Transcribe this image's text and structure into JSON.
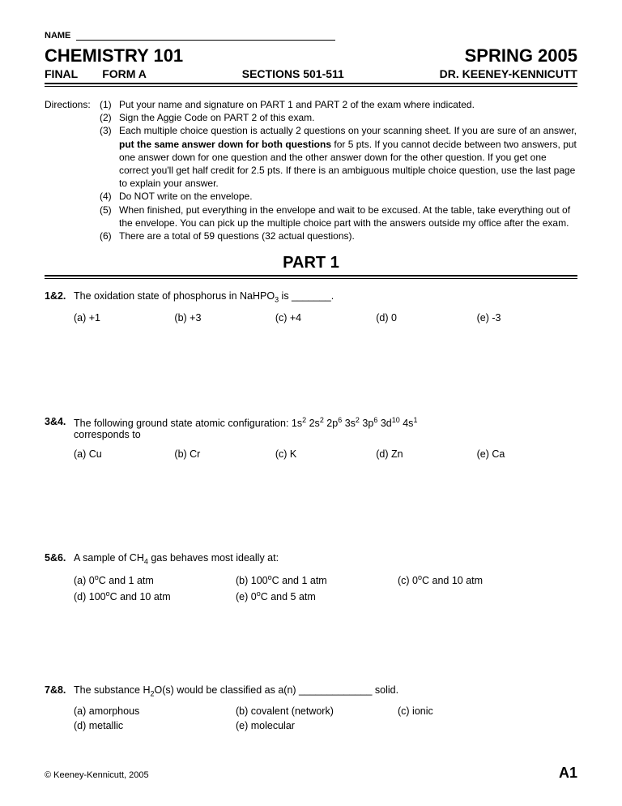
{
  "name_label": "NAME",
  "header": {
    "course": "CHEMISTRY 101",
    "term": "SPRING 2005",
    "exam": "FINAL",
    "form": "FORM A",
    "sections": "SECTIONS 501-511",
    "instructor": "DR. KEENEY-KENNICUTT"
  },
  "directions_label": "Directions:",
  "directions": [
    {
      "n": "(1)",
      "text": "Put your name and signature on PART 1 and PART 2 of the exam where indicated."
    },
    {
      "n": "(2)",
      "text": "Sign the Aggie Code on PART 2 of this exam."
    },
    {
      "n": "(3)",
      "pre": "Each multiple choice question is actually 2 questions on your scanning sheet.  If you are sure of an answer, ",
      "bold": "put the same answer down for both questions",
      "post": " for 5 pts.  If you cannot decide between two answers, put one answer down for one question and the other answer down for the other question.  If you get one correct you'll get half credit for 2.5 pts.  If there is an ambiguous multiple choice question, use the last page to explain your answer."
    },
    {
      "n": "(4)",
      "text": "Do NOT write on the envelope."
    },
    {
      "n": "(5)",
      "text": "When finished, put everything in the envelope and wait to be excused.  At the table, take everything out of the envelope.  You can pick up the multiple choice part with the answers outside my office after the exam."
    },
    {
      "n": "(6)",
      "text": "There are a total of 59 questions (32 actual questions)."
    }
  ],
  "part_title": "PART 1",
  "q1": {
    "num": "1&2.",
    "pre": "The oxidation state of phosphorus in NaHPO",
    "sub": "3",
    "post": " is _______.",
    "opts": [
      "(a)  +1",
      "(b)  +3",
      "(c)  +4",
      "(d)  0",
      "(e)  -3"
    ]
  },
  "q3": {
    "num": "3&4.",
    "pre": "The following ground state atomic configuration:  1s",
    "post": "corresponds to",
    "cfg": [
      {
        "b": "1s",
        "p": "2"
      },
      {
        "b": " 2s",
        "p": "2"
      },
      {
        "b": " 2p",
        "p": "6"
      },
      {
        "b": " 3s",
        "p": "2"
      },
      {
        "b": " 3p",
        "p": "6"
      },
      {
        "b": " 3d",
        "p": "10"
      },
      {
        "b": " 4s",
        "p": "1"
      }
    ],
    "opts": [
      "(a)  Cu",
      "(b)  Cr",
      "(c)  K",
      "(d)  Zn",
      "(e)  Ca"
    ]
  },
  "q5": {
    "num": "5&6.",
    "pre": "A sample of CH",
    "sub": "4",
    "post": " gas behaves most ideally at:",
    "opts": [
      [
        {
          "l": "(a)  0",
          "deg": "o",
          "r": "C and 1 atm"
        },
        {
          "l": "(b)  100",
          "deg": "o",
          "r": "C and 1 atm"
        },
        {
          "l": "(c)  0",
          "deg": "o",
          "r": "C and 10 atm"
        }
      ],
      [
        {
          "l": "(d)  100",
          "deg": "o",
          "r": "C and 10 atm"
        },
        {
          "l": "(e)  0",
          "deg": "o",
          "r": "C and 5 atm"
        }
      ]
    ]
  },
  "q7": {
    "num": "7&8.",
    "pre": "The substance H",
    "sub": "2",
    "post": "O(s) would be classified as a(n) _____________ solid.",
    "opts": [
      [
        "(a)  amorphous",
        "(b)  covalent (network)",
        "(c)  ionic"
      ],
      [
        "(d)  metallic",
        "(e)  molecular"
      ]
    ]
  },
  "footer": {
    "copyright": "© Keeney-Kennicutt, 2005",
    "page": "A1"
  }
}
